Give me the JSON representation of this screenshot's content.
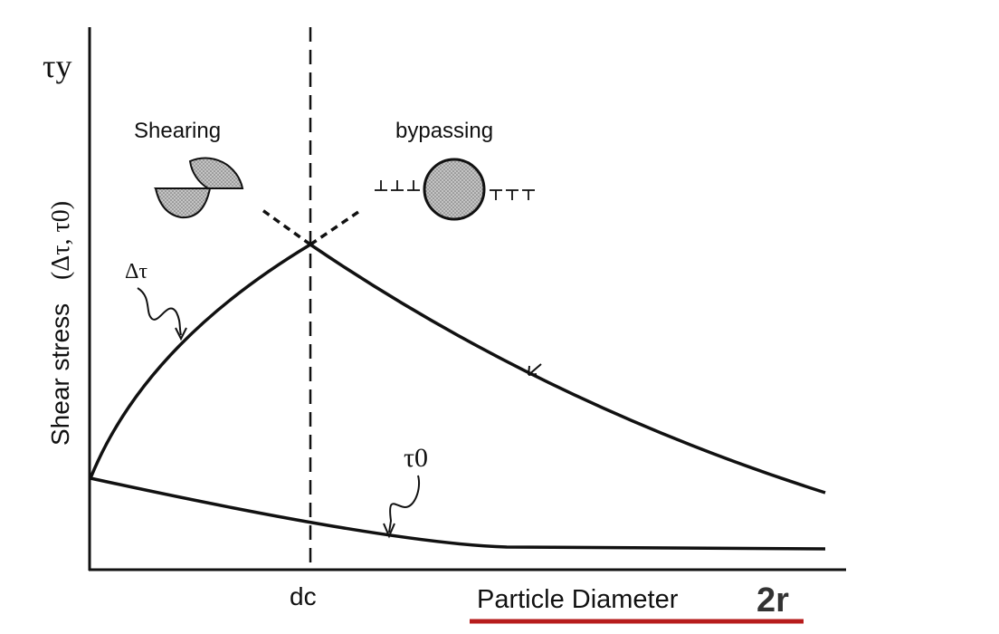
{
  "axes": {
    "y_label": "Shear stress",
    "y_label_sub": "(Δτ, τ0)",
    "y_top_symbol": "τy",
    "x_label": "Particle Diameter",
    "x_suffix": "2r",
    "x_critical": "dc"
  },
  "regions": {
    "left": "Shearing",
    "right": "bypassing"
  },
  "curves": {
    "delta_tau": "Δτ",
    "tau0": "τ0"
  },
  "colors": {
    "line": "#111111",
    "particle_fill": "#b8b8b8",
    "underline": "#b71c1c",
    "suffix": "#333333"
  }
}
